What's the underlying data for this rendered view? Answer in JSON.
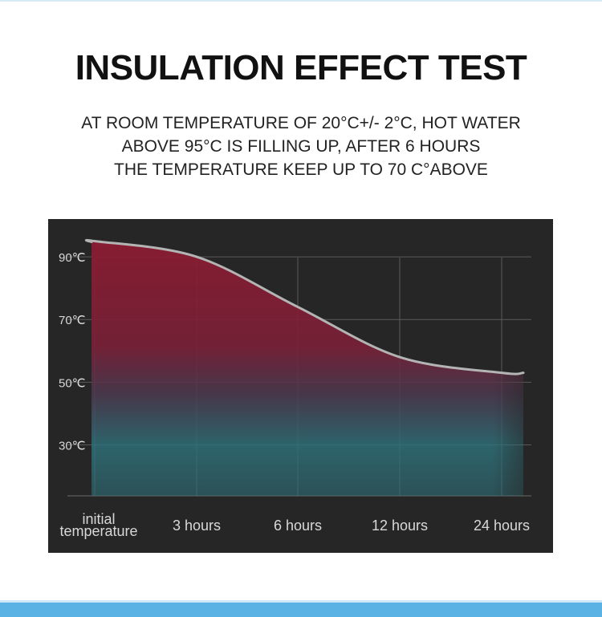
{
  "header": {
    "title": "INSULATION EFFECT TEST",
    "subtitle_lines": [
      "AT ROOM TEMPERATURE OF 20°C+/- 2°C, HOT WATER",
      "ABOVE 95°C IS FILLING UP, AFTER 6 HOURS",
      "THE TEMPERATURE KEEP UP TO 70 C°ABOVE"
    ]
  },
  "chart_data": {
    "type": "area",
    "title": "",
    "xlabel": "",
    "ylabel": "",
    "categories": [
      "initial temperature",
      "3 hours",
      "6 hours",
      "12 hours",
      "24 hours"
    ],
    "category_lines": [
      [
        "initial",
        "temperature"
      ],
      [
        "3 hours"
      ],
      [
        "6 hours"
      ],
      [
        "12 hours"
      ],
      [
        "24 hours"
      ]
    ],
    "y_ticks": [
      90,
      70,
      50,
      30
    ],
    "y_tick_labels": [
      "90℃",
      "70℃",
      "50℃",
      "30℃"
    ],
    "ylim": [
      14,
      100
    ],
    "series": [
      {
        "values": [
          95,
          90,
          74,
          58,
          53
        ]
      }
    ],
    "grid": true,
    "colors": {
      "panel_background": "#262626",
      "line": "#b4b4b4",
      "fill_hot": "#8c1c32",
      "fill_cool": "#2f6f78",
      "grid": "#5a5a5a",
      "tick_text": "#d8d8d8"
    }
  }
}
